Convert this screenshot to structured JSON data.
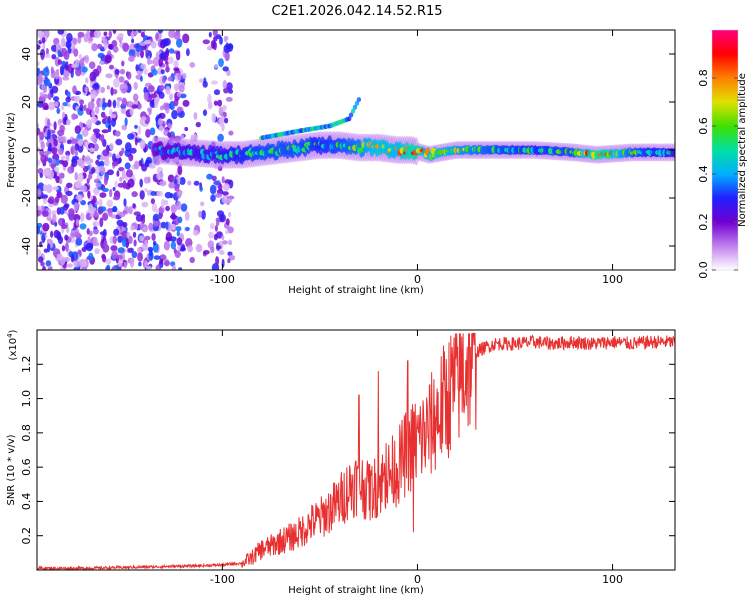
{
  "chart_data": [
    {
      "type": "heatmap",
      "title": "C2E1.2026.042.14.52.R15",
      "xlabel": "Height of straight line (km)",
      "ylabel": "Frequency (Hz)",
      "xlim": [
        -195,
        132
      ],
      "ylim": [
        -50,
        50
      ],
      "xticks": [
        -100,
        0,
        100
      ],
      "xtick_labels": [
        "-100",
        "0",
        "100"
      ],
      "yticks": [
        -40,
        -20,
        0,
        20,
        40
      ],
      "ytick_labels": [
        "-40",
        "-20",
        "0",
        "20",
        "40"
      ],
      "colorbar": {
        "label": "Normalized spectral amplitude",
        "range": [
          0,
          1
        ],
        "ticks": [
          0,
          0.2,
          0.4,
          0.6,
          0.8
        ],
        "tick_labels": [
          "0.0",
          "0.2",
          "0.4",
          "0.6",
          "0.8"
        ],
        "stops": [
          "#ffffff",
          "#c080f0",
          "#7000d0",
          "#2020ff",
          "#00b0ff",
          "#00e0a0",
          "#40e000",
          "#e0e000",
          "#ff8000",
          "#ff0000",
          "#ff0080"
        ]
      },
      "noise_region_x": [
        -195,
        -95
      ],
      "signal": [
        {
          "x": -135,
          "y": 0,
          "amp": 0.35
        },
        {
          "x": -120,
          "y": -1,
          "amp": 0.45
        },
        {
          "x": -100,
          "y": -2,
          "amp": 0.5
        },
        {
          "x": -90,
          "y": -2,
          "amp": 0.55
        },
        {
          "x": -80,
          "y": -1,
          "amp": 0.6
        },
        {
          "x": -70,
          "y": 0,
          "amp": 0.6
        },
        {
          "x": -60,
          "y": 1,
          "amp": 0.6
        },
        {
          "x": -50,
          "y": 2,
          "amp": 0.55
        },
        {
          "x": -40,
          "y": 2,
          "amp": 0.6
        },
        {
          "x": -30,
          "y": 1,
          "amp": 0.65
        },
        {
          "x": -20,
          "y": 1,
          "amp": 0.8
        },
        {
          "x": -10,
          "y": 0,
          "amp": 0.75
        },
        {
          "x": -3,
          "y": 0,
          "amp": 0.9
        },
        {
          "x": 6,
          "y": -2,
          "amp": 0.75
        },
        {
          "x": 20,
          "y": 0,
          "amp": 0.7
        },
        {
          "x": 40,
          "y": 0,
          "amp": 0.6
        },
        {
          "x": 60,
          "y": 0,
          "amp": 0.55
        },
        {
          "x": 80,
          "y": -1,
          "amp": 0.6
        },
        {
          "x": 92,
          "y": -2,
          "amp": 0.95
        },
        {
          "x": 110,
          "y": -1,
          "amp": 0.6
        },
        {
          "x": 132,
          "y": -1,
          "amp": 0.5
        }
      ],
      "upper_branch": [
        {
          "x": -80,
          "y": 5
        },
        {
          "x": -60,
          "y": 8
        },
        {
          "x": -45,
          "y": 10
        },
        {
          "x": -35,
          "y": 13
        },
        {
          "x": -30,
          "y": 21
        }
      ]
    },
    {
      "type": "line",
      "title": "",
      "xlabel": "Height of straight line (km)",
      "ylabel": "SNR (10 * v/v)",
      "y_scale_label": "(x10",
      "y_scale_exponent": "4",
      "y_scale_suffix": ")",
      "xlim": [
        -195,
        132
      ],
      "ylim": [
        0,
        1.4
      ],
      "xticks": [
        -100,
        0,
        100
      ],
      "xtick_labels": [
        "-100",
        "0",
        "100"
      ],
      "yticks": [
        0.2,
        0.4,
        0.6,
        0.8,
        1.0,
        1.2
      ],
      "ytick_labels": [
        "0.2",
        "0.4",
        "0.6",
        "0.8",
        "1.0",
        "1.2"
      ],
      "color": "#e83030",
      "series": [
        {
          "name": "SNR",
          "x": [
            -195,
            -170,
            -150,
            -130,
            -110,
            -100,
            -90,
            -85,
            -80,
            -75,
            -70,
            -65,
            -60,
            -55,
            -50,
            -45,
            -40,
            -35,
            -30,
            -25,
            -20,
            -15,
            -10,
            -5,
            0,
            5,
            10,
            15,
            20,
            25,
            30,
            35,
            40,
            50,
            60,
            70,
            80,
            90,
            100,
            110,
            120,
            132
          ],
          "y": [
            0.01,
            0.01,
            0.015,
            0.02,
            0.025,
            0.03,
            0.04,
            0.07,
            0.12,
            0.14,
            0.17,
            0.19,
            0.22,
            0.27,
            0.3,
            0.35,
            0.4,
            0.48,
            0.52,
            0.45,
            0.5,
            0.55,
            0.6,
            0.7,
            0.75,
            0.8,
            0.9,
            1.0,
            1.1,
            1.2,
            1.27,
            1.3,
            1.32,
            1.32,
            1.33,
            1.32,
            1.33,
            1.32,
            1.33,
            1.32,
            1.33,
            1.33
          ]
        }
      ],
      "spikes": [
        {
          "x": -30,
          "y": 1.02
        },
        {
          "x": -25,
          "y": 0.62
        },
        {
          "x": -20,
          "y": 1.16
        },
        {
          "x": -16,
          "y": 0.74
        },
        {
          "x": -5,
          "y": 1.22
        },
        {
          "x": -2,
          "y": 0.22
        }
      ]
    }
  ]
}
